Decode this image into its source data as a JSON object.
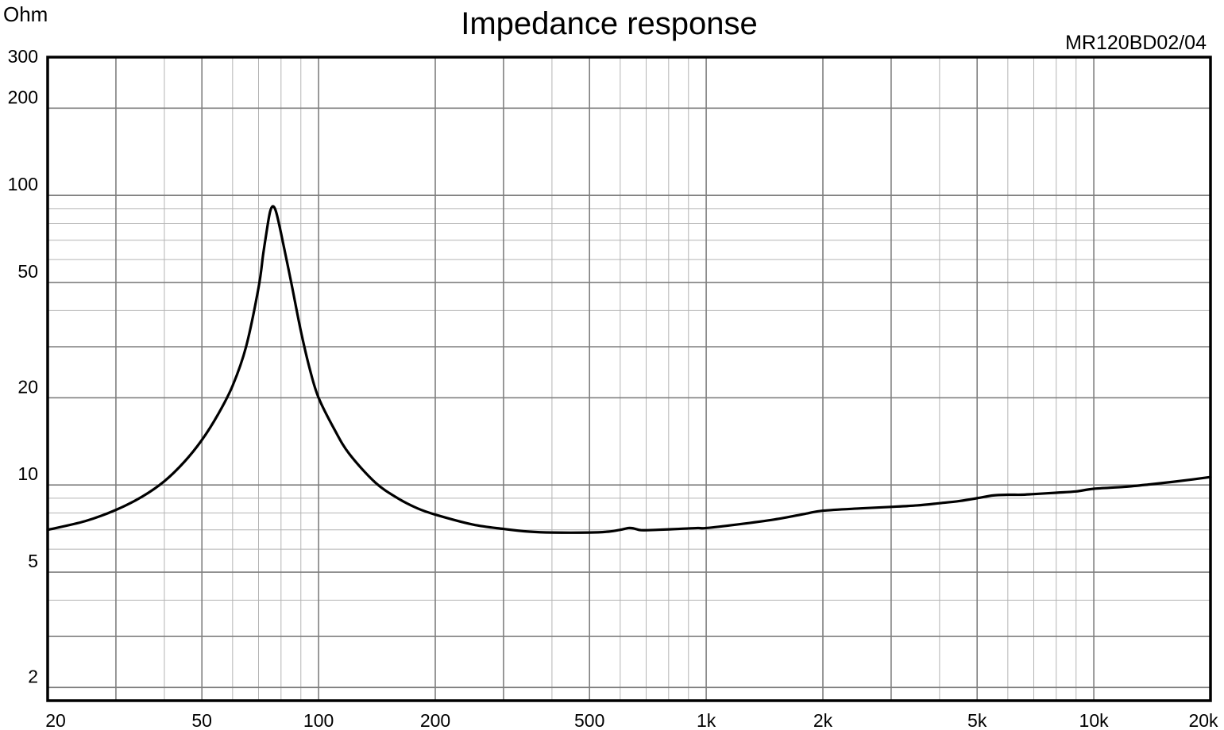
{
  "chart_data": {
    "type": "line",
    "title": "Impedance response",
    "model": "MR120BD02/04",
    "ylabel": "Ohm",
    "xlabel": "",
    "xscale": "log",
    "yscale": "log",
    "xlim": [
      20,
      20000
    ],
    "ylim": [
      1.8,
      300
    ],
    "grid": true,
    "x_ticks": [
      {
        "value": 20,
        "label": "20"
      },
      {
        "value": 50,
        "label": "50"
      },
      {
        "value": 100,
        "label": "100"
      },
      {
        "value": 200,
        "label": "200"
      },
      {
        "value": 500,
        "label": "500"
      },
      {
        "value": 1000,
        "label": "1k"
      },
      {
        "value": 2000,
        "label": "2k"
      },
      {
        "value": 5000,
        "label": "5k"
      },
      {
        "value": 10000,
        "label": "10k"
      },
      {
        "value": 20000,
        "label": "20k"
      }
    ],
    "y_ticks": [
      {
        "value": 2,
        "label": "2"
      },
      {
        "value": 5,
        "label": "5"
      },
      {
        "value": 10,
        "label": "10"
      },
      {
        "value": 20,
        "label": "20"
      },
      {
        "value": 50,
        "label": "50"
      },
      {
        "value": 100,
        "label": "100"
      },
      {
        "value": 200,
        "label": "200"
      },
      {
        "value": 300,
        "label": "300"
      }
    ],
    "series": [
      {
        "color": "#000000",
        "points": [
          [
            20,
            7.0
          ],
          [
            25,
            7.5
          ],
          [
            30,
            8.2
          ],
          [
            35,
            9.1
          ],
          [
            40,
            10.3
          ],
          [
            45,
            12.0
          ],
          [
            50,
            14.3
          ],
          [
            55,
            17.5
          ],
          [
            60,
            22.0
          ],
          [
            65,
            30.0
          ],
          [
            70,
            48.0
          ],
          [
            72,
            63.0
          ],
          [
            74,
            80.0
          ],
          [
            75,
            88.0
          ],
          [
            76,
            91.5
          ],
          [
            77,
            90.5
          ],
          [
            78,
            86.0
          ],
          [
            80,
            74.0
          ],
          [
            85,
            50.0
          ],
          [
            90,
            34.0
          ],
          [
            95,
            25.0
          ],
          [
            100,
            20.0
          ],
          [
            110,
            15.5
          ],
          [
            120,
            12.8
          ],
          [
            140,
            10.2
          ],
          [
            160,
            9.0
          ],
          [
            180,
            8.3
          ],
          [
            200,
            7.9
          ],
          [
            250,
            7.3
          ],
          [
            300,
            7.05
          ],
          [
            350,
            6.9
          ],
          [
            400,
            6.85
          ],
          [
            500,
            6.85
          ],
          [
            560,
            6.9
          ],
          [
            600,
            7.0
          ],
          [
            630,
            7.1
          ],
          [
            650,
            7.08
          ],
          [
            680,
            6.98
          ],
          [
            750,
            7.0
          ],
          [
            850,
            7.05
          ],
          [
            950,
            7.1
          ],
          [
            1000,
            7.1
          ],
          [
            1200,
            7.3
          ],
          [
            1500,
            7.6
          ],
          [
            1800,
            7.95
          ],
          [
            2000,
            8.15
          ],
          [
            2500,
            8.3
          ],
          [
            3000,
            8.4
          ],
          [
            3500,
            8.5
          ],
          [
            4000,
            8.65
          ],
          [
            4500,
            8.8
          ],
          [
            5000,
            9.0
          ],
          [
            5500,
            9.2
          ],
          [
            6000,
            9.25
          ],
          [
            6500,
            9.25
          ],
          [
            7000,
            9.3
          ],
          [
            8000,
            9.4
          ],
          [
            9000,
            9.5
          ],
          [
            10000,
            9.7
          ],
          [
            12000,
            9.85
          ],
          [
            14000,
            10.05
          ],
          [
            16000,
            10.25
          ],
          [
            18000,
            10.45
          ],
          [
            20000,
            10.65
          ]
        ]
      }
    ]
  }
}
